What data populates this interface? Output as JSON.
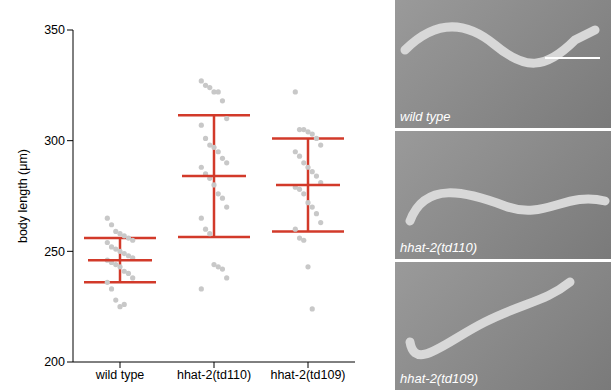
{
  "chart_data": {
    "type": "scatter",
    "categories": [
      "wild type",
      "hhat-2(td110)",
      "hhat-2(td109)"
    ],
    "y_label": "body length (μm)",
    "ylim": [
      200,
      350
    ],
    "yticks": [
      200,
      250,
      300,
      350
    ],
    "grid": false,
    "series": [
      {
        "type": "scatter",
        "color": "#c8c8c8",
        "marker": "circle",
        "values": [
          [
            265,
            262,
            259,
            258,
            257,
            256,
            255,
            254,
            252,
            251,
            250,
            249,
            248,
            247,
            246,
            245,
            244,
            243,
            241,
            240,
            238,
            236,
            233,
            228,
            225,
            226
          ],
          [
            327,
            325,
            324,
            322,
            322,
            318,
            310,
            307,
            301,
            298,
            297,
            295,
            292,
            290,
            288,
            285,
            283,
            280,
            276,
            274,
            270,
            265,
            260,
            258,
            244,
            243,
            242,
            238,
            233
          ],
          [
            322,
            305,
            305,
            304,
            303,
            301,
            298,
            295,
            293,
            290,
            288,
            286,
            284,
            281,
            279,
            278,
            276,
            272,
            270,
            267,
            263,
            260,
            256,
            255,
            243,
            224
          ]
        ]
      },
      {
        "type": "errorbar",
        "color": "#d23a2a",
        "values": [
          246,
          284,
          280
        ],
        "error": [
          10,
          27.5,
          21
        ]
      }
    ]
  },
  "images": [
    {
      "label": "wild type"
    },
    {
      "label": "hhat-2(td110)"
    },
    {
      "label": "hhat-2(td109)"
    }
  ]
}
